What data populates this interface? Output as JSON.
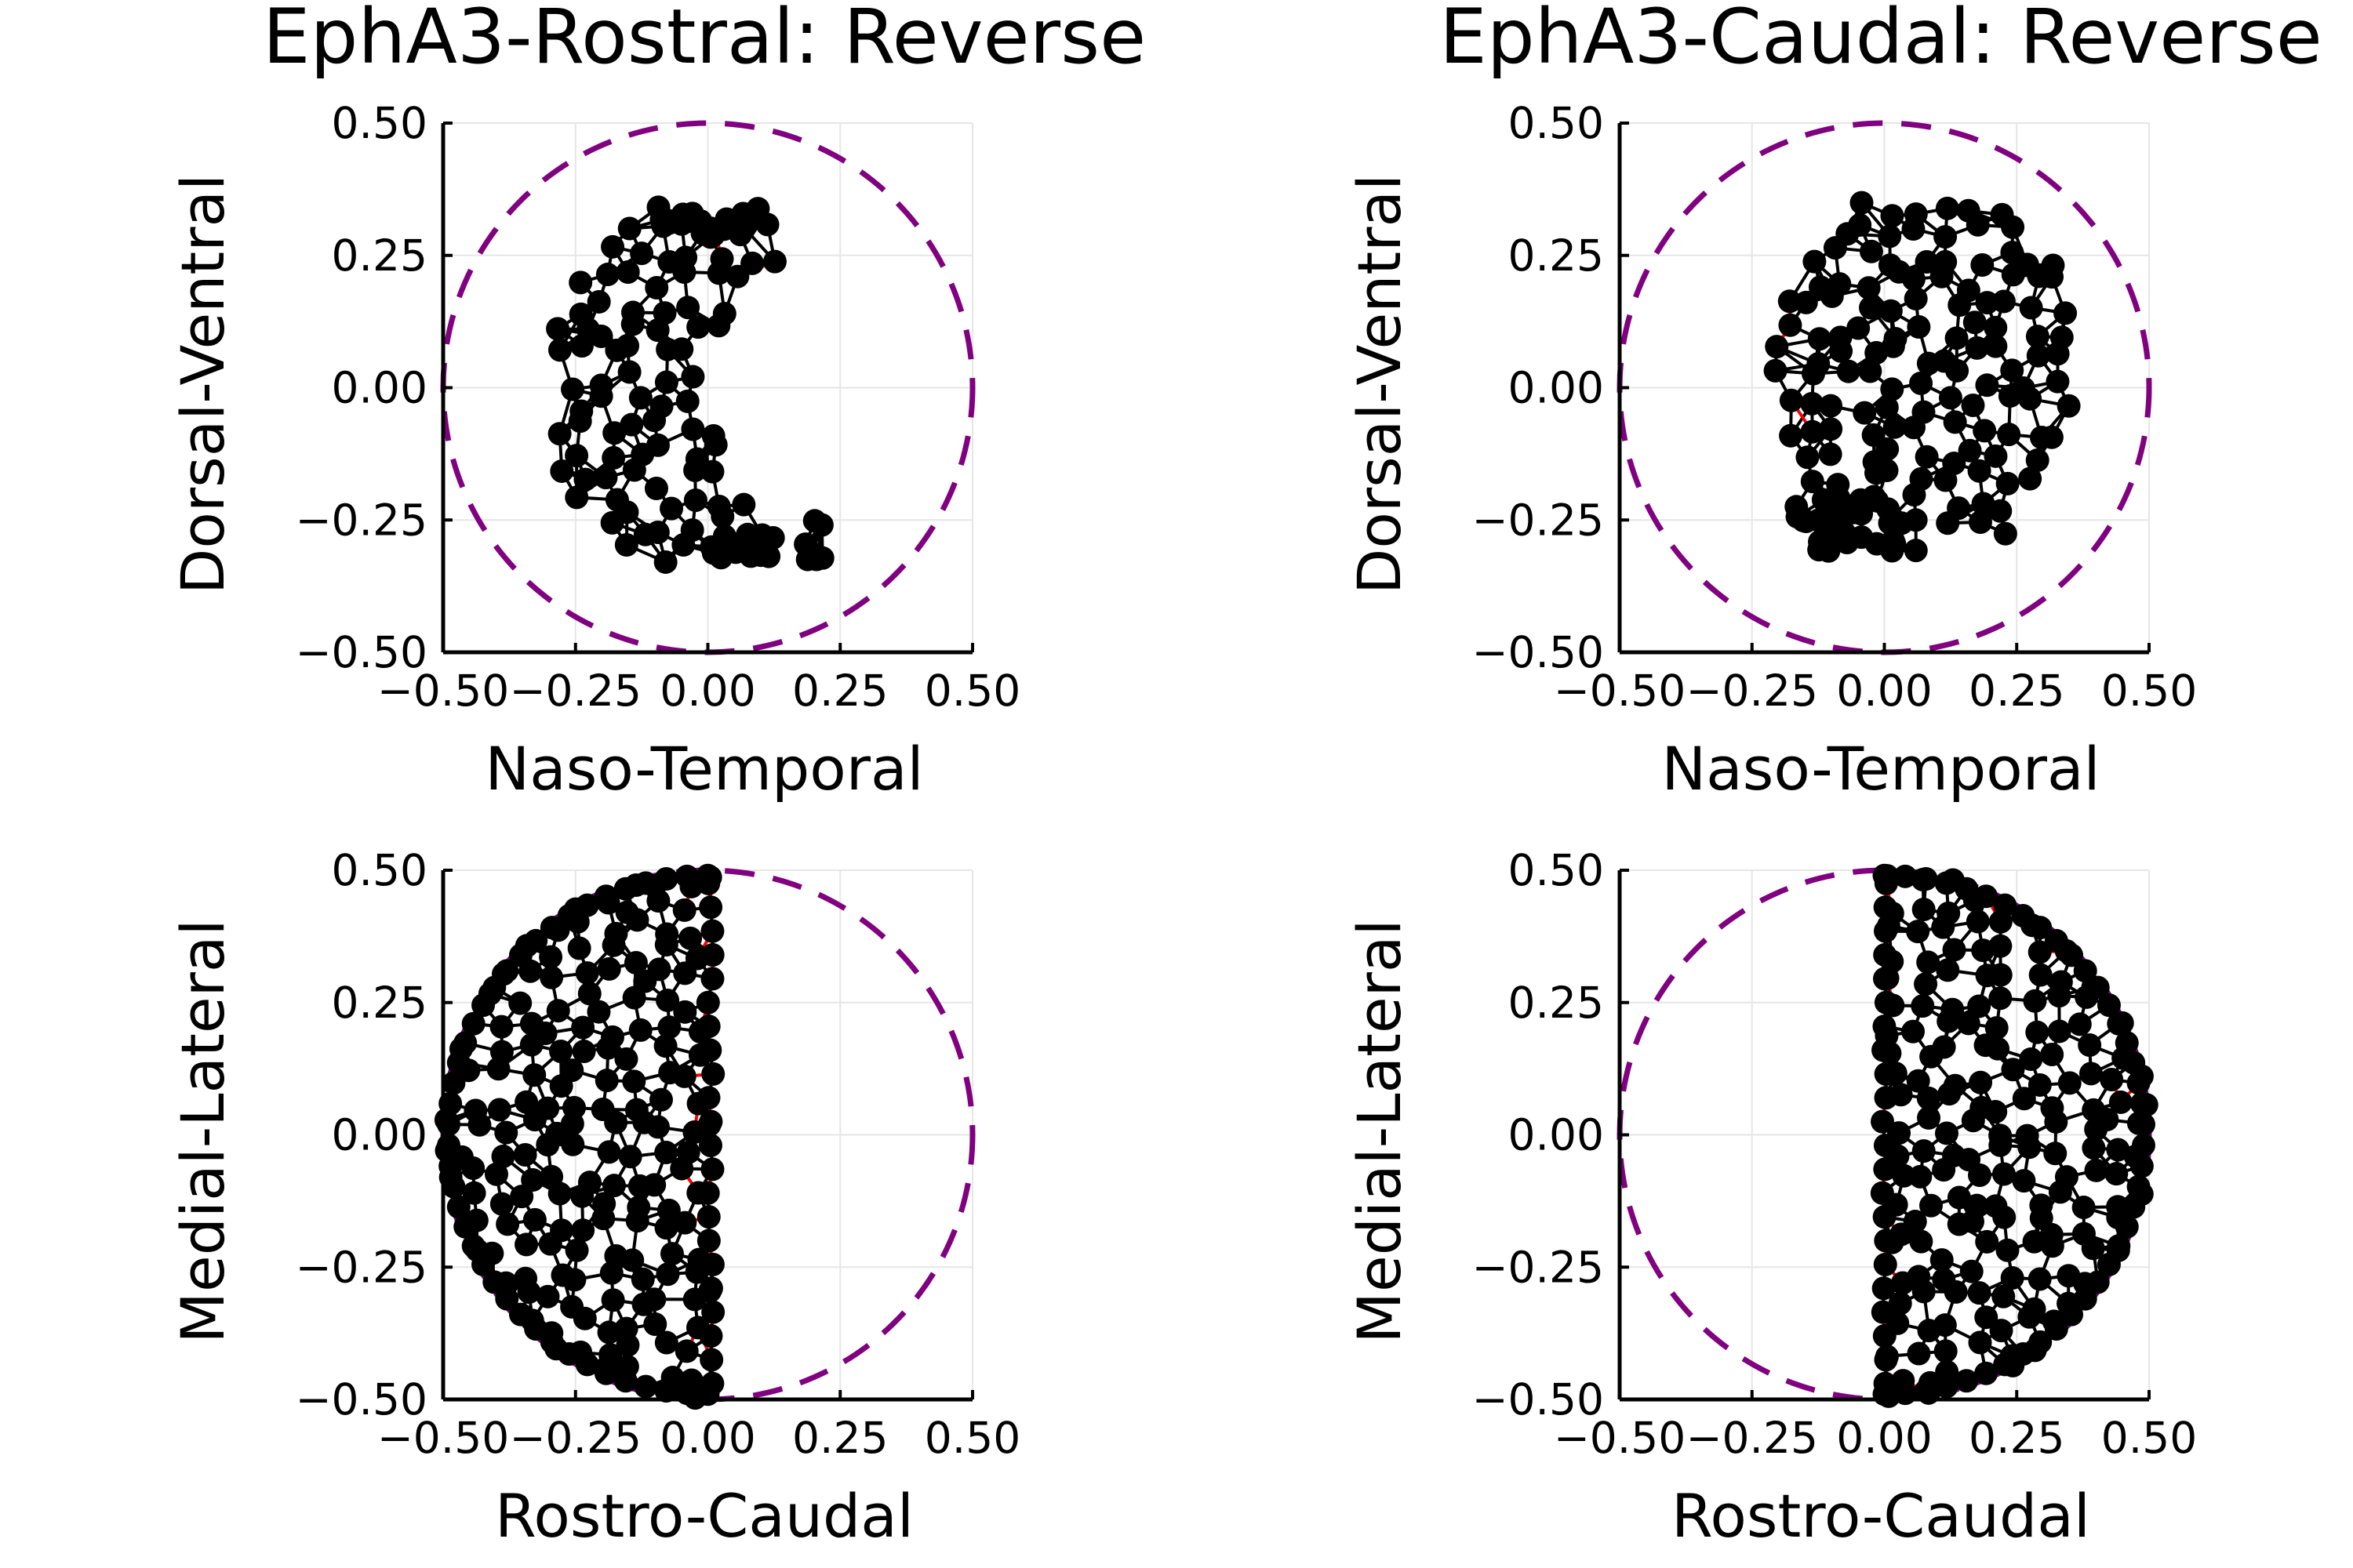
{
  "colors": {
    "boundary": "#800080",
    "mesh_edge": "#000000",
    "mesh_edge_highlight": "#ff0000",
    "node": "#000000",
    "grid": "#e6e6e6",
    "background": "#ffffff"
  },
  "chart_data": [
    {
      "type": "scatter",
      "title": "EphA3-Rostral: Reverse",
      "xlabel": "Naso-Temporal",
      "ylabel": "Dorsal-Ventral",
      "xlim": [
        -0.5,
        0.5
      ],
      "ylim": [
        -0.5,
        0.5
      ],
      "xticks": [
        "−0.50",
        "−0.25",
        "0.00",
        "0.25",
        "0.50"
      ],
      "yticks": [
        "−0.50",
        "−0.25",
        "0.00",
        "0.25",
        "0.50"
      ],
      "xtick_values": [
        -0.5,
        -0.25,
        0,
        0.25,
        0.5
      ],
      "ytick_values": [
        -0.5,
        -0.25,
        0,
        0.25,
        0.5
      ],
      "grid": true,
      "legend": "none",
      "boundary_circle": {
        "center": [
          0,
          0
        ],
        "radius": 0.5,
        "style": "dashed"
      },
      "layout": "crescent",
      "point_extent": {
        "x": [
          -0.3,
          0.24
        ],
        "y": [
          -0.34,
          0.37
        ]
      },
      "notes_marks": "mesh graph of about 180 nodes in a crescent-shaped cloud with black edges and a few red boundary edges"
    },
    {
      "type": "scatter",
      "title": "EphA3-Caudal: Reverse",
      "xlabel": "Naso-Temporal",
      "ylabel": "Dorsal-Ventral",
      "xlim": [
        -0.5,
        0.5
      ],
      "ylim": [
        -0.5,
        0.5
      ],
      "xticks": [
        "−0.50",
        "−0.25",
        "0.00",
        "0.25",
        "0.50"
      ],
      "yticks": [
        "−0.50",
        "−0.25",
        "0.00",
        "0.25",
        "0.50"
      ],
      "xtick_values": [
        -0.5,
        -0.25,
        0,
        0.25,
        0.5
      ],
      "ytick_values": [
        -0.5,
        -0.25,
        0,
        0.25,
        0.5
      ],
      "grid": true,
      "legend": "none",
      "boundary_circle": {
        "center": [
          0,
          0
        ],
        "radius": 0.5,
        "style": "dashed"
      },
      "layout": "blob",
      "point_extent": {
        "x": [
          -0.2,
          0.37
        ],
        "y": [
          -0.32,
          0.4
        ]
      },
      "notes_marks": "mesh graph of about 160 nodes in a rounded cloud, denser near the bottom-left"
    },
    {
      "type": "scatter",
      "xlabel": "Rostro-Caudal",
      "ylabel": "Medial-Lateral",
      "xlim": [
        -0.5,
        0.5
      ],
      "ylim": [
        -0.5,
        0.5
      ],
      "xticks": [
        "−0.50",
        "−0.25",
        "0.00",
        "0.25",
        "0.50"
      ],
      "yticks": [
        "−0.50",
        "−0.25",
        "0.00",
        "0.25",
        "0.50"
      ],
      "xtick_values": [
        -0.5,
        -0.25,
        0,
        0.25,
        0.5
      ],
      "ytick_values": [
        -0.5,
        -0.25,
        0,
        0.25,
        0.5
      ],
      "grid": true,
      "legend": "none",
      "boundary_circle": {
        "center": [
          0,
          0
        ],
        "radius": 0.5,
        "style": "dashed"
      },
      "layout": "half-left",
      "point_extent": {
        "x": [
          -0.5,
          0.01
        ],
        "y": [
          -0.5,
          0.5
        ]
      },
      "notes_marks": "dense mesh filling the left half disc, red edges along the vertical line at x = 0"
    },
    {
      "type": "scatter",
      "xlabel": "Rostro-Caudal",
      "ylabel": "Medial-Lateral",
      "xlim": [
        -0.5,
        0.5
      ],
      "ylim": [
        -0.5,
        0.5
      ],
      "xticks": [
        "−0.50",
        "−0.25",
        "0.00",
        "0.25",
        "0.50"
      ],
      "yticks": [
        "−0.50",
        "−0.25",
        "0.00",
        "0.25",
        "0.50"
      ],
      "xtick_values": [
        -0.5,
        -0.25,
        0,
        0.25,
        0.5
      ],
      "ytick_values": [
        -0.5,
        -0.25,
        0,
        0.25,
        0.5
      ],
      "grid": true,
      "legend": "none",
      "boundary_circle": {
        "center": [
          0,
          0
        ],
        "radius": 0.5,
        "style": "dashed"
      },
      "layout": "half-right",
      "point_extent": {
        "x": [
          0.0,
          0.5
        ],
        "y": [
          -0.5,
          0.5
        ]
      },
      "notes_marks": "dense mesh filling the right half disc, red edges along x = 0 and along the circle"
    }
  ]
}
